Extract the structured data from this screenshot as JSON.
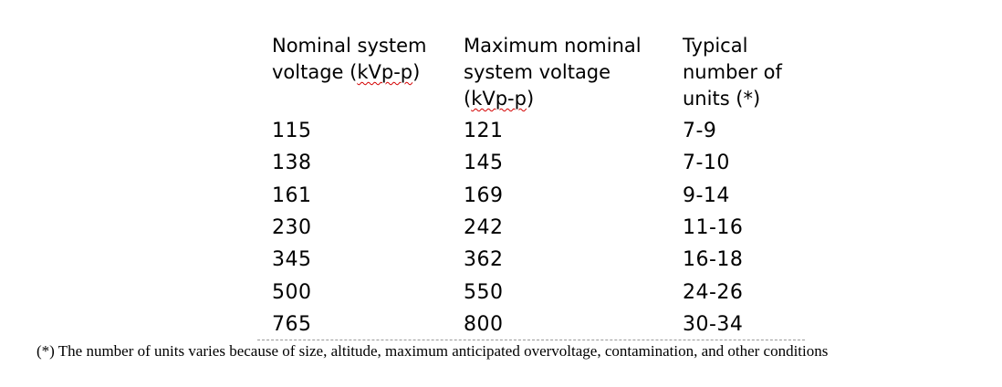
{
  "table": {
    "headers": [
      {
        "pre": "Nominal system\nvoltage (",
        "unit": "kVp-p",
        "post": ")"
      },
      {
        "pre": "Maximum nominal\nsystem voltage\n(",
        "unit": "kVp-p",
        "post": ")"
      },
      {
        "pre": "Typical\nnumber of\nunits (*)",
        "unit": "",
        "post": ""
      }
    ],
    "rows": [
      [
        "115",
        "121",
        "7-9"
      ],
      [
        "138",
        "145",
        "7-10"
      ],
      [
        "161",
        "169",
        "9-14"
      ],
      [
        "230",
        "242",
        "11-16"
      ],
      [
        "345",
        "362",
        "16-18"
      ],
      [
        "500",
        "550",
        "24-26"
      ],
      [
        "765",
        "800",
        "30-34"
      ]
    ]
  },
  "footnote": "(*) The number of units varies because of size, altitude, maximum anticipated overvoltage, contamination, and other conditions"
}
